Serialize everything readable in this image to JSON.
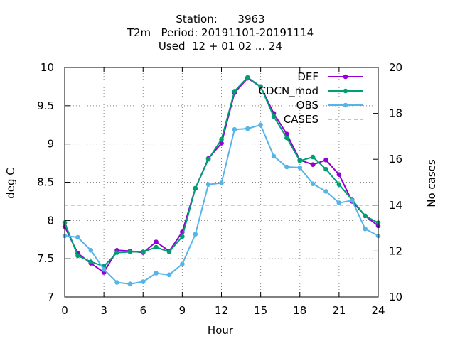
{
  "title_lines": [
    "Station:      3963",
    "T2m   Period: 20191101-20191114",
    "Used  12 + 01 02 ... 24"
  ],
  "chart_data": {
    "type": "line",
    "xlabel": "Hour",
    "ylabel": "deg C",
    "y2label": "No cases",
    "xlim": [
      0,
      24
    ],
    "ylim": [
      7,
      10
    ],
    "y2lim": [
      10,
      20
    ],
    "x_ticks": [
      0,
      3,
      6,
      9,
      12,
      15,
      18,
      21,
      24
    ],
    "x_tick_labels": [
      "0",
      "3",
      "6",
      "9",
      "12",
      "15",
      "18",
      "21",
      "24"
    ],
    "y_ticks": [
      7,
      7.5,
      8,
      8.5,
      9,
      9.5,
      10
    ],
    "y_tick_labels": [
      "7",
      "7.5",
      "8",
      "8.5",
      "9",
      "9.5",
      "10"
    ],
    "y2_ticks": [
      10,
      12,
      14,
      16,
      18,
      20
    ],
    "y2_tick_labels": [
      "10",
      "12",
      "14",
      "16",
      "18",
      "20"
    ],
    "grid": true,
    "legend_position": "top-right",
    "x": [
      0,
      1,
      2,
      3,
      4,
      5,
      6,
      7,
      8,
      9,
      10,
      11,
      12,
      13,
      14,
      15,
      16,
      17,
      18,
      19,
      20,
      21,
      22,
      23,
      24
    ],
    "series": [
      {
        "name": "DEF",
        "color": "#9400d3",
        "axis": "y",
        "values": [
          7.92,
          7.57,
          7.44,
          7.32,
          7.61,
          7.6,
          7.58,
          7.72,
          7.6,
          7.85,
          8.42,
          8.81,
          9.01,
          9.67,
          9.86,
          9.75,
          9.4,
          9.13,
          8.79,
          8.73,
          8.79,
          8.6,
          8.25,
          8.06,
          7.93
        ]
      },
      {
        "name": "CDCN_mod",
        "legend_label": "CDCN_mod",
        "color": "#009e73",
        "axis": "y",
        "values": [
          7.97,
          7.54,
          7.46,
          7.4,
          7.58,
          7.59,
          7.59,
          7.65,
          7.59,
          7.79,
          8.42,
          8.8,
          9.06,
          9.69,
          9.87,
          9.75,
          9.36,
          9.08,
          8.78,
          8.83,
          8.67,
          8.47,
          8.27,
          8.06,
          7.97
        ]
      },
      {
        "name": "OBS",
        "color": "#56b4e9",
        "axis": "y",
        "values": [
          7.8,
          7.78,
          7.61,
          7.36,
          7.19,
          7.17,
          7.2,
          7.31,
          7.29,
          7.43,
          7.82,
          8.47,
          8.49,
          9.19,
          9.2,
          9.25,
          8.84,
          8.7,
          8.69,
          8.48,
          8.38,
          8.23,
          8.26,
          7.89,
          7.8
        ]
      },
      {
        "name": "CASES",
        "color": "#a0a0a0",
        "axis": "y2",
        "dashed": true,
        "values": [
          14,
          14,
          14,
          14,
          14,
          14,
          14,
          14,
          14,
          14,
          14,
          14,
          14,
          14,
          14,
          14,
          14,
          14,
          14,
          14,
          14,
          14,
          14,
          14,
          14
        ]
      }
    ]
  }
}
